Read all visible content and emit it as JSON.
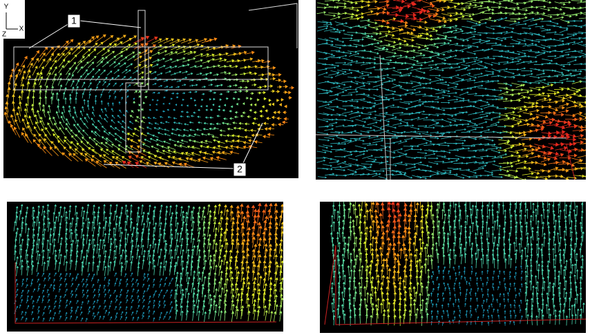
{
  "axis_triad": {
    "y": "Y",
    "z": "Z",
    "x": "X"
  },
  "labels": [
    "1",
    "2"
  ]
}
